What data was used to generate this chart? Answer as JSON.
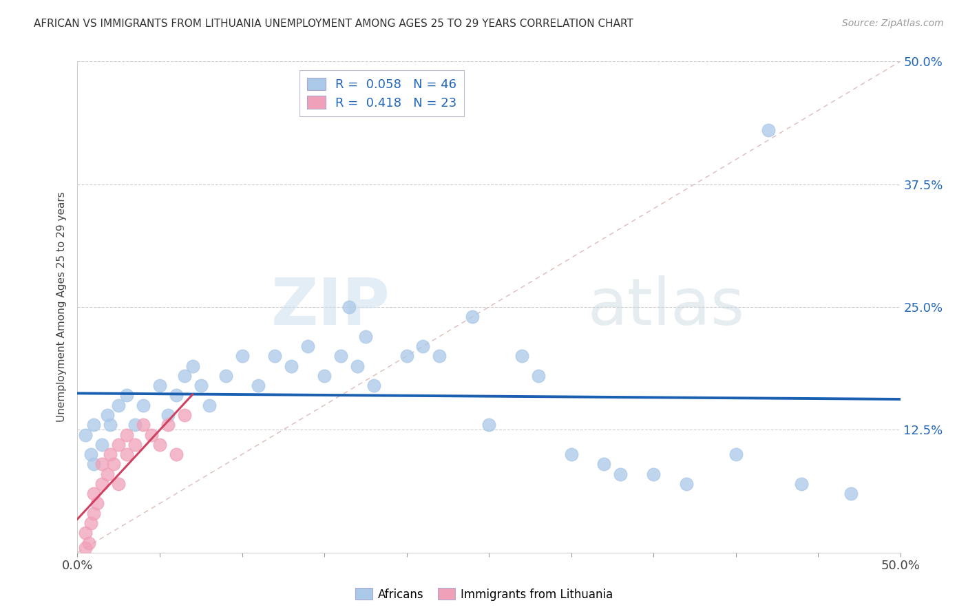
{
  "title": "AFRICAN VS IMMIGRANTS FROM LITHUANIA UNEMPLOYMENT AMONG AGES 25 TO 29 YEARS CORRELATION CHART",
  "source": "Source: ZipAtlas.com",
  "ylabel": "Unemployment Among Ages 25 to 29 years",
  "xlim": [
    0.0,
    0.5
  ],
  "ylim": [
    0.0,
    0.5
  ],
  "ytick_vals": [
    0.125,
    0.25,
    0.375,
    0.5
  ],
  "ytick_labels": [
    "12.5%",
    "25.0%",
    "37.5%",
    "50.0%"
  ],
  "watermark_zip": "ZIP",
  "watermark_atlas": "atlas",
  "legend_african": "R =  0.058   N = 46",
  "legend_lith": "R =  0.418   N = 23",
  "african_color": "#aac8e8",
  "lith_color": "#f0a0b8",
  "african_line_color": "#1a5fb0",
  "lith_line_color": "#d04060",
  "diagonal_color": "#ddbbbb",
  "africans_x": [
    0.005,
    0.008,
    0.01,
    0.01,
    0.015,
    0.018,
    0.02,
    0.025,
    0.03,
    0.035,
    0.04,
    0.05,
    0.055,
    0.06,
    0.065,
    0.07,
    0.075,
    0.08,
    0.09,
    0.1,
    0.11,
    0.12,
    0.13,
    0.14,
    0.15,
    0.16,
    0.17,
    0.175,
    0.18,
    0.2,
    0.21,
    0.22,
    0.24,
    0.25,
    0.27,
    0.28,
    0.3,
    0.32,
    0.33,
    0.35,
    0.37,
    0.4,
    0.42,
    0.44,
    0.47,
    0.165
  ],
  "africans_y": [
    0.12,
    0.1,
    0.13,
    0.09,
    0.11,
    0.14,
    0.13,
    0.15,
    0.16,
    0.13,
    0.15,
    0.17,
    0.14,
    0.16,
    0.18,
    0.19,
    0.17,
    0.15,
    0.18,
    0.2,
    0.17,
    0.2,
    0.19,
    0.21,
    0.18,
    0.2,
    0.19,
    0.22,
    0.17,
    0.2,
    0.21,
    0.2,
    0.24,
    0.13,
    0.2,
    0.18,
    0.1,
    0.09,
    0.08,
    0.08,
    0.07,
    0.1,
    0.43,
    0.07,
    0.06,
    0.25
  ],
  "lith_x": [
    0.005,
    0.005,
    0.007,
    0.008,
    0.01,
    0.01,
    0.012,
    0.015,
    0.015,
    0.018,
    0.02,
    0.022,
    0.025,
    0.025,
    0.03,
    0.03,
    0.035,
    0.04,
    0.045,
    0.05,
    0.055,
    0.06,
    0.065
  ],
  "lith_y": [
    0.005,
    0.02,
    0.01,
    0.03,
    0.04,
    0.06,
    0.05,
    0.07,
    0.09,
    0.08,
    0.1,
    0.09,
    0.11,
    0.07,
    0.1,
    0.12,
    0.11,
    0.13,
    0.12,
    0.11,
    0.13,
    0.1,
    0.14
  ]
}
